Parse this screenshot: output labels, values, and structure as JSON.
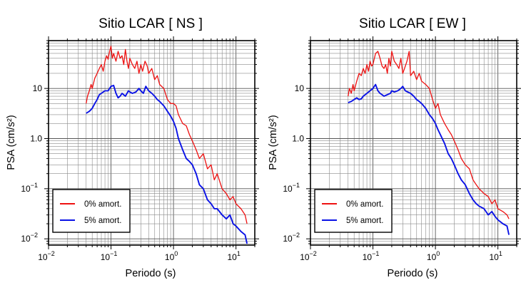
{
  "chart_data": [
    {
      "type": "line",
      "title": "Sitio LCAR [ NS ]",
      "xlabel": "Periodo (s)",
      "ylabel": "PSA (cm/s²)",
      "x_scale": "log",
      "y_scale": "log",
      "xlim": [
        0.01,
        20
      ],
      "ylim": [
        0.0075,
        90
      ],
      "grid": true,
      "legend_position": "bottom-left",
      "x_ticks": [
        {
          "base": "10",
          "exp": "−2",
          "value": 0.01
        },
        {
          "base": "10",
          "exp": "−1",
          "value": 0.1
        },
        {
          "base": "10",
          "exp": "0",
          "value": 1
        },
        {
          "base": "10",
          "exp": "1",
          "value": 10
        }
      ],
      "y_ticks": [
        {
          "label": "10",
          "sup": "−2",
          "value": 0.01
        },
        {
          "label": "10",
          "sup": "−1",
          "value": 0.1
        },
        {
          "label": "10",
          "sup": "0",
          "value": 1,
          "plain": "1.0"
        },
        {
          "label": "10",
          "sup": "1",
          "value": 10,
          "plain": "10"
        }
      ],
      "series": [
        {
          "name": "0% amort.",
          "color": "#ee1111",
          "x": [
            0.04,
            0.042,
            0.045,
            0.048,
            0.05,
            0.055,
            0.06,
            0.065,
            0.07,
            0.075,
            0.08,
            0.085,
            0.09,
            0.095,
            0.1,
            0.105,
            0.11,
            0.12,
            0.13,
            0.14,
            0.15,
            0.16,
            0.17,
            0.18,
            0.19,
            0.2,
            0.22,
            0.24,
            0.26,
            0.28,
            0.3,
            0.32,
            0.35,
            0.38,
            0.4,
            0.45,
            0.5,
            0.55,
            0.6,
            0.7,
            0.8,
            0.9,
            1.0,
            1.1,
            1.2,
            1.4,
            1.6,
            1.8,
            2.0,
            2.3,
            2.6,
            3.0,
            3.5,
            4.0,
            4.5,
            5.0,
            6.0,
            7.0,
            8.0,
            9.0,
            10.0,
            12.0,
            14.0,
            15.0
          ],
          "y": [
            5,
            7,
            9,
            12,
            10,
            16,
            20,
            25,
            30,
            22,
            35,
            45,
            38,
            55,
            70,
            40,
            50,
            35,
            55,
            40,
            45,
            30,
            60,
            35,
            25,
            40,
            30,
            25,
            35,
            20,
            30,
            22,
            35,
            28,
            20,
            25,
            15,
            18,
            12,
            10,
            6,
            5,
            5,
            4.5,
            3,
            2,
            1.8,
            1.2,
            0.9,
            0.6,
            0.4,
            0.5,
            0.25,
            0.3,
            0.15,
            0.2,
            0.1,
            0.08,
            0.06,
            0.07,
            0.05,
            0.04,
            0.03,
            0.02
          ]
        },
        {
          "name": "5% amort.",
          "color": "#0a12e6",
          "x": [
            0.04,
            0.045,
            0.05,
            0.055,
            0.06,
            0.065,
            0.07,
            0.08,
            0.09,
            0.1,
            0.11,
            0.12,
            0.13,
            0.14,
            0.15,
            0.17,
            0.19,
            0.2,
            0.22,
            0.25,
            0.28,
            0.3,
            0.33,
            0.36,
            0.4,
            0.45,
            0.5,
            0.55,
            0.6,
            0.7,
            0.8,
            0.9,
            1.0,
            1.1,
            1.2,
            1.4,
            1.6,
            1.8,
            2.0,
            2.3,
            2.6,
            3.0,
            3.5,
            4.0,
            4.5,
            5.0,
            6.0,
            7.0,
            8.0,
            9.0,
            10.0,
            12.0,
            14.0,
            15.0
          ],
          "y": [
            3.2,
            3.5,
            4,
            5,
            6,
            7.5,
            8,
            9,
            9,
            11,
            11.5,
            8,
            6.5,
            7,
            8,
            7,
            9,
            8.5,
            8,
            8.5,
            10,
            9,
            8,
            11,
            9,
            8,
            7,
            6,
            5.5,
            4.5,
            3.5,
            2.8,
            2.2,
            1.6,
            1,
            0.6,
            0.4,
            0.35,
            0.3,
            0.2,
            0.12,
            0.1,
            0.06,
            0.05,
            0.04,
            0.04,
            0.03,
            0.025,
            0.03,
            0.02,
            0.018,
            0.014,
            0.012,
            0.008
          ]
        }
      ]
    },
    {
      "type": "line",
      "title": "Sitio LCAR [ EW ]",
      "xlabel": "Periodo (s)",
      "ylabel": "PSA (cm/s²)",
      "x_scale": "log",
      "y_scale": "log",
      "xlim": [
        0.01,
        20
      ],
      "ylim": [
        0.0075,
        90
      ],
      "grid": true,
      "legend_position": "bottom-left",
      "x_ticks": [
        {
          "base": "10",
          "exp": "−2",
          "value": 0.01
        },
        {
          "base": "10",
          "exp": "−1",
          "value": 0.1
        },
        {
          "base": "10",
          "exp": "0",
          "value": 1
        },
        {
          "base": "10",
          "exp": "1",
          "value": 10
        }
      ],
      "y_ticks": [
        {
          "label": "10",
          "sup": "−2",
          "value": 0.01
        },
        {
          "label": "10",
          "sup": "−1",
          "value": 0.1
        },
        {
          "label": "10",
          "sup": "0",
          "value": 1,
          "plain": "1.0"
        },
        {
          "label": "10",
          "sup": "1",
          "value": 10,
          "plain": "10"
        }
      ],
      "series": [
        {
          "name": "0% amort.",
          "color": "#ee1111",
          "x": [
            0.04,
            0.042,
            0.045,
            0.048,
            0.05,
            0.055,
            0.06,
            0.065,
            0.07,
            0.075,
            0.08,
            0.085,
            0.09,
            0.095,
            0.1,
            0.11,
            0.12,
            0.13,
            0.14,
            0.15,
            0.16,
            0.17,
            0.18,
            0.19,
            0.2,
            0.22,
            0.24,
            0.26,
            0.28,
            0.3,
            0.32,
            0.35,
            0.38,
            0.4,
            0.45,
            0.5,
            0.55,
            0.6,
            0.7,
            0.8,
            0.9,
            1.0,
            1.1,
            1.2,
            1.4,
            1.6,
            1.8,
            2.0,
            2.3,
            2.6,
            3.0,
            3.5,
            4.0,
            4.5,
            5.0,
            6.0,
            7.0,
            8.0,
            9.0,
            10.0,
            12.0,
            14.0,
            15.0
          ],
          "y": [
            7,
            10,
            8,
            12,
            9,
            14,
            20,
            18,
            25,
            20,
            30,
            22,
            35,
            28,
            30,
            50,
            55,
            40,
            28,
            25,
            30,
            20,
            40,
            28,
            55,
            35,
            30,
            25,
            40,
            20,
            25,
            35,
            55,
            18,
            22,
            15,
            20,
            14,
            12,
            10,
            6,
            4,
            5,
            3,
            2,
            1.5,
            1.2,
            0.9,
            0.6,
            0.4,
            0.3,
            0.25,
            0.15,
            0.12,
            0.1,
            0.08,
            0.07,
            0.05,
            0.06,
            0.04,
            0.035,
            0.03,
            0.025
          ]
        },
        {
          "name": "5% amort.",
          "color": "#0a12e6",
          "x": [
            0.04,
            0.045,
            0.05,
            0.055,
            0.06,
            0.065,
            0.07,
            0.08,
            0.09,
            0.1,
            0.11,
            0.12,
            0.13,
            0.14,
            0.15,
            0.17,
            0.19,
            0.2,
            0.22,
            0.25,
            0.28,
            0.3,
            0.33,
            0.36,
            0.4,
            0.45,
            0.5,
            0.55,
            0.6,
            0.7,
            0.8,
            0.9,
            1.0,
            1.1,
            1.2,
            1.4,
            1.6,
            1.8,
            2.0,
            2.3,
            2.6,
            3.0,
            3.5,
            4.0,
            4.5,
            5.0,
            6.0,
            7.0,
            8.0,
            9.0,
            10.0,
            12.0,
            14.0,
            15.0
          ],
          "y": [
            5.2,
            5.5,
            6,
            6.5,
            6,
            6.2,
            7,
            8,
            9,
            10,
            12,
            9,
            8,
            7.5,
            7,
            7.5,
            8,
            9,
            8.5,
            9,
            10,
            11,
            9,
            8.5,
            8,
            7,
            6,
            5.5,
            5,
            4,
            3,
            2.5,
            2,
            1.5,
            1.2,
            0.8,
            0.5,
            0.4,
            0.3,
            0.2,
            0.15,
            0.12,
            0.08,
            0.06,
            0.05,
            0.045,
            0.04,
            0.03,
            0.035,
            0.028,
            0.024,
            0.02,
            0.018,
            0.012
          ]
        }
      ]
    }
  ]
}
